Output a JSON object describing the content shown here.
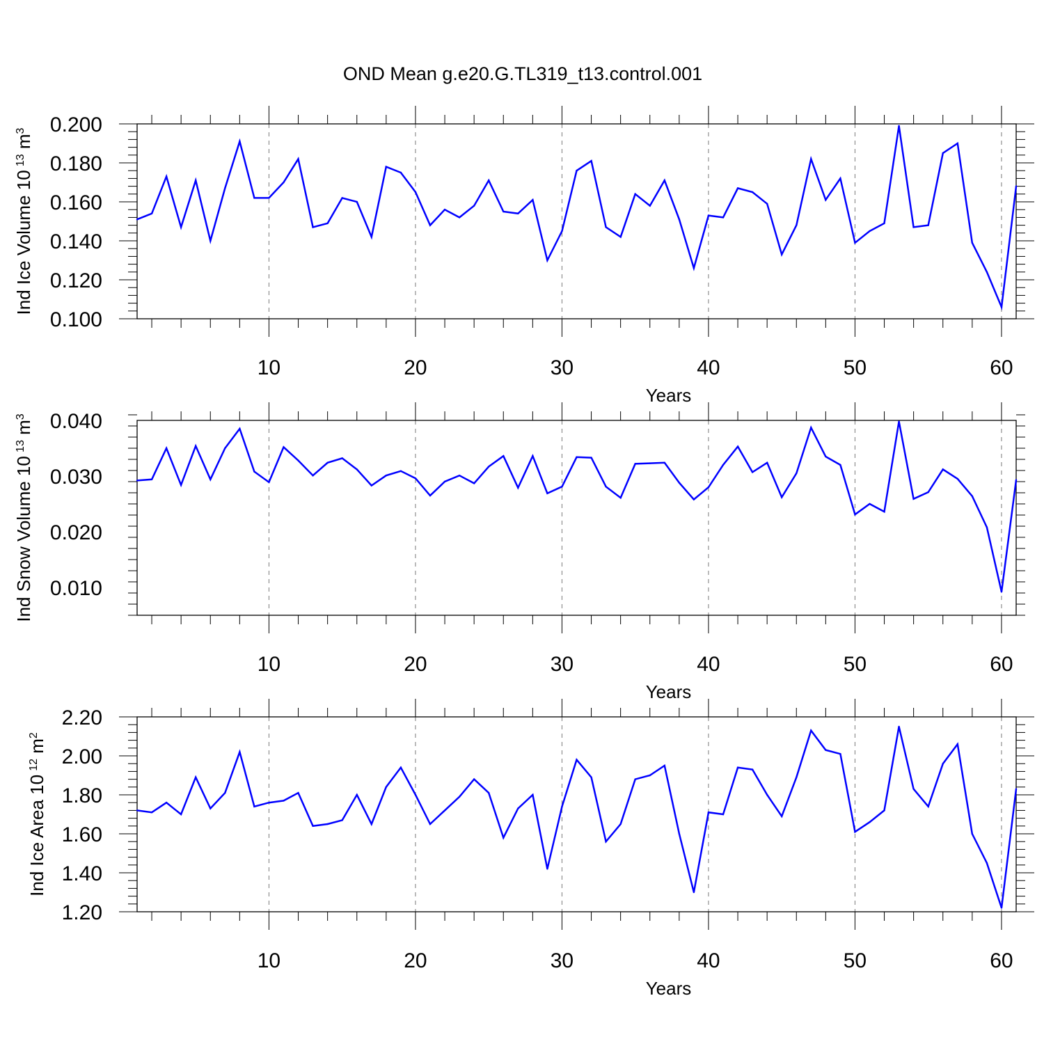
{
  "title": "OND Mean g.e20.G.TL319_t13.control.001",
  "chart_data": [
    {
      "type": "line",
      "id": "ice-volume",
      "ylabel": "Ind Ice Volume 10",
      "ylabel_sup": "13",
      "ylabel_unit": "m",
      "ylabel_unit_sup": "3",
      "xlabel": "Years",
      "xlim": [
        1,
        61
      ],
      "ylim": [
        0.1,
        0.2
      ],
      "yticks": [
        0.1,
        0.12,
        0.14,
        0.16,
        0.18,
        0.2
      ],
      "ytick_labels": [
        "0.100",
        "0.120",
        "0.140",
        "0.160",
        "0.180",
        "0.200"
      ],
      "xticks": [
        10,
        20,
        30,
        40,
        50,
        60
      ],
      "xtick_labels": [
        "10",
        "20",
        "30",
        "40",
        "50",
        "60"
      ],
      "grid": "vertical dashed at major x ticks",
      "color": "#0000ff",
      "values": [
        0.151,
        0.154,
        0.173,
        0.147,
        0.171,
        0.14,
        0.167,
        0.191,
        0.162,
        0.162,
        0.17,
        0.182,
        0.147,
        0.149,
        0.162,
        0.16,
        0.142,
        0.178,
        0.175,
        0.165,
        0.148,
        0.156,
        0.152,
        0.158,
        0.171,
        0.155,
        0.154,
        0.161,
        0.13,
        0.145,
        0.176,
        0.181,
        0.147,
        0.142,
        0.164,
        0.158,
        0.171,
        0.151,
        0.126,
        0.153,
        0.152,
        0.167,
        0.165,
        0.159,
        0.133,
        0.148,
        0.182,
        0.161,
        0.172,
        0.139,
        0.145,
        0.149,
        0.199,
        0.147,
        0.148,
        0.185,
        0.19,
        0.139,
        0.124,
        0.106,
        0.168
      ]
    },
    {
      "type": "line",
      "id": "snow-volume",
      "ylabel": "Ind Snow Volume 10",
      "ylabel_sup": "13",
      "ylabel_unit": "m",
      "ylabel_unit_sup": "3",
      "xlabel": "Years",
      "xlim": [
        1,
        61
      ],
      "ylim": [
        0.005,
        0.04
      ],
      "yticks": [
        0.01,
        0.02,
        0.03,
        0.04
      ],
      "ytick_labels": [
        "0.010",
        "0.020",
        "0.030",
        "0.040"
      ],
      "xticks": [
        10,
        20,
        30,
        40,
        50,
        60
      ],
      "xtick_labels": [
        "10",
        "20",
        "30",
        "40",
        "50",
        "60"
      ],
      "grid": "vertical dashed at major x ticks",
      "color": "#0000ff",
      "values": [
        0.0292,
        0.0294,
        0.035,
        0.0284,
        0.0354,
        0.0294,
        0.035,
        0.0385,
        0.0308,
        0.0289,
        0.0352,
        0.0328,
        0.0301,
        0.0324,
        0.0332,
        0.0312,
        0.0283,
        0.0301,
        0.0309,
        0.0296,
        0.0265,
        0.029,
        0.0301,
        0.0287,
        0.0317,
        0.0336,
        0.0279,
        0.0336,
        0.0269,
        0.0281,
        0.0334,
        0.0333,
        0.0281,
        0.0261,
        0.0322,
        0.0323,
        0.0324,
        0.0288,
        0.0258,
        0.028,
        0.032,
        0.0353,
        0.0307,
        0.0324,
        0.0262,
        0.0305,
        0.0387,
        0.0335,
        0.032,
        0.0231,
        0.025,
        0.0236,
        0.0398,
        0.0259,
        0.0271,
        0.0312,
        0.0295,
        0.0264,
        0.0208,
        0.0092,
        0.0293
      ]
    },
    {
      "type": "line",
      "id": "ice-area",
      "ylabel": "Ind Ice Area 10",
      "ylabel_sup": "12",
      "ylabel_unit": "m",
      "ylabel_unit_sup": "2",
      "xlabel": "Years",
      "xlim": [
        1,
        61
      ],
      "ylim": [
        1.2,
        2.2
      ],
      "yticks": [
        1.2,
        1.4,
        1.6,
        1.8,
        2.0,
        2.2
      ],
      "ytick_labels": [
        "1.20",
        "1.40",
        "1.60",
        "1.80",
        "2.00",
        "2.20"
      ],
      "xticks": [
        10,
        20,
        30,
        40,
        50,
        60
      ],
      "xtick_labels": [
        "10",
        "20",
        "30",
        "40",
        "50",
        "60"
      ],
      "grid": "vertical dashed at major x ticks",
      "color": "#0000ff",
      "values": [
        1.72,
        1.71,
        1.76,
        1.7,
        1.89,
        1.73,
        1.81,
        2.02,
        1.74,
        1.76,
        1.77,
        1.81,
        1.64,
        1.65,
        1.67,
        1.8,
        1.65,
        1.84,
        1.94,
        1.8,
        1.65,
        1.72,
        1.79,
        1.88,
        1.81,
        1.58,
        1.73,
        1.8,
        1.42,
        1.74,
        1.98,
        1.89,
        1.56,
        1.65,
        1.88,
        1.9,
        1.95,
        1.6,
        1.3,
        1.71,
        1.7,
        1.94,
        1.93,
        1.8,
        1.69,
        1.89,
        2.13,
        2.03,
        2.01,
        1.61,
        1.66,
        1.72,
        2.15,
        1.83,
        1.74,
        1.96,
        2.06,
        1.6,
        1.45,
        1.22,
        1.83
      ]
    }
  ]
}
